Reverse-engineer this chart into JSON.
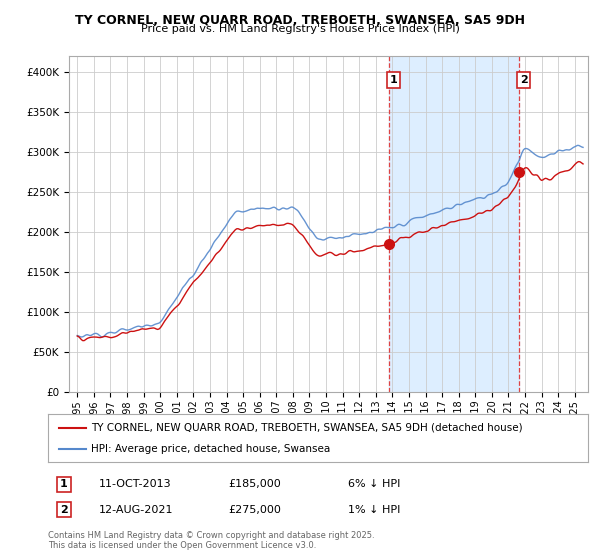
{
  "title": "TY CORNEL, NEW QUARR ROAD, TREBOETH, SWANSEA, SA5 9DH",
  "subtitle": "Price paid vs. HM Land Registry's House Price Index (HPI)",
  "legend_line1": "TY CORNEL, NEW QUARR ROAD, TREBOETH, SWANSEA, SA5 9DH (detached house)",
  "legend_line2": "HPI: Average price, detached house, Swansea",
  "annotation1_label": "1",
  "annotation1_date": "11-OCT-2013",
  "annotation1_price": "£185,000",
  "annotation1_note": "6% ↓ HPI",
  "annotation2_label": "2",
  "annotation2_date": "12-AUG-2021",
  "annotation2_price": "£275,000",
  "annotation2_note": "1% ↓ HPI",
  "footer": "Contains HM Land Registry data © Crown copyright and database right 2025.\nThis data is licensed under the Open Government Licence v3.0.",
  "sale1_x": 2013.78,
  "sale1_y": 185000,
  "sale2_x": 2021.62,
  "sale2_y": 275000,
  "vline1_x": 2013.78,
  "vline2_x": 2021.62,
  "ylim": [
    0,
    420000
  ],
  "xlim": [
    1994.5,
    2025.8
  ],
  "hpi_color": "#5588cc",
  "price_color": "#cc1111",
  "vline_color": "#dd4444",
  "shade_color": "#ddeeff",
  "background_color": "#ffffff",
  "grid_color": "#cccccc",
  "box_edge_color": "#cc2222"
}
